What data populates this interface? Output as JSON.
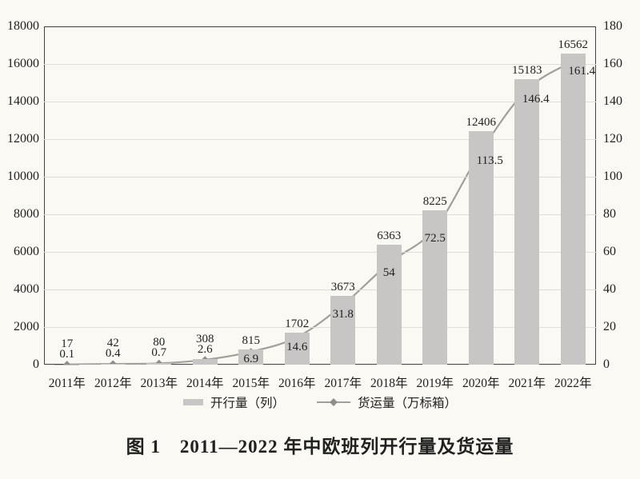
{
  "figure": {
    "caption": "图 1　2011—2022 年中欧班列开行量及货运量"
  },
  "chart_data": {
    "type": "bar",
    "subtype": "bar-line-combo",
    "title": "图 1　2011—2022 年中欧班列开行量及货运量",
    "categories": [
      "2011年",
      "2012年",
      "2013年",
      "2014年",
      "2015年",
      "2016年",
      "2017年",
      "2018年",
      "2019年",
      "2020年",
      "2021年",
      "2022年"
    ],
    "series": [
      {
        "name": "开行量（列）",
        "type": "bar",
        "axis": "left",
        "values": [
          17,
          42,
          80,
          308,
          815,
          1702,
          3673,
          6363,
          8225,
          12406,
          15183,
          16562
        ]
      },
      {
        "name": "货运量（万标箱）",
        "type": "line",
        "marker": "diamond",
        "axis": "right",
        "values": [
          0.1,
          0.4,
          0.7,
          2.6,
          6.9,
          14.6,
          31.8,
          54,
          72.5,
          113.5,
          146.4,
          161.4
        ]
      }
    ],
    "left_axis": {
      "min": 0,
      "max": 18000,
      "step": 2000,
      "tick_labels": [
        "0",
        "2000",
        "4000",
        "6000",
        "8000",
        "10000",
        "12000",
        "14000",
        "16000",
        "18000"
      ]
    },
    "right_axis": {
      "min": 0,
      "max": 180,
      "step": 20,
      "tick_labels": [
        "0",
        "20",
        "40",
        "60",
        "80",
        "100",
        "120",
        "140",
        "160",
        "180"
      ]
    },
    "grid": "horizontal",
    "legend_position": "bottom",
    "data_labels": true
  },
  "colors": {
    "background": "#fbf9f4",
    "bar": "#c7c6c4",
    "line": "#a09f9b",
    "marker": "#8e8e8a",
    "grid": "#deddd7",
    "axis": "#434341",
    "text": "#21211f"
  }
}
